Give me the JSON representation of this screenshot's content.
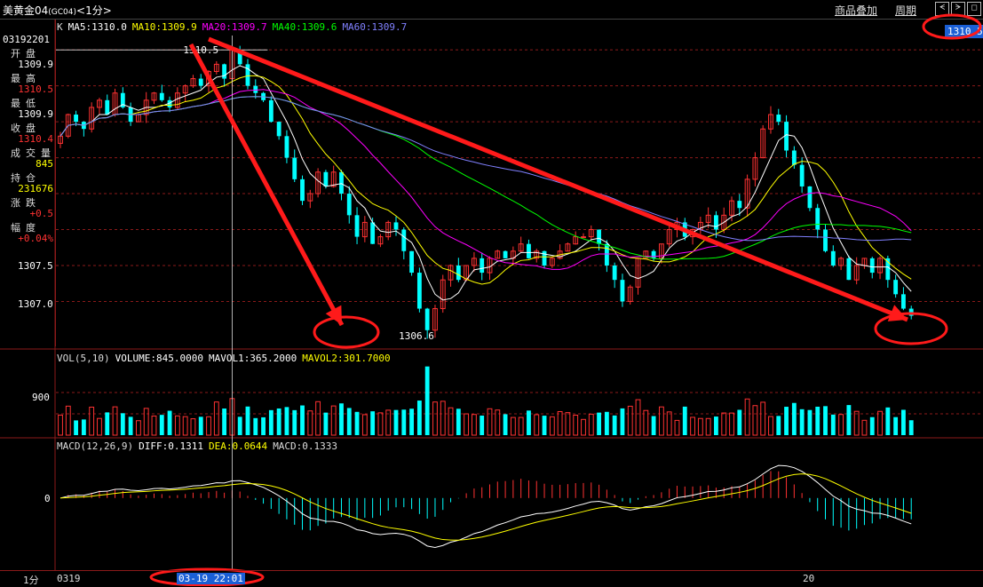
{
  "window": {
    "title": "美黄金04",
    "title_code": "(GC04)",
    "period": "<1分>",
    "links": [
      "商品叠加",
      "周期"
    ],
    "win_buttons": [
      "ᗕ",
      "ᗒ",
      "◻"
    ]
  },
  "info_panel": {
    "code": "03192201",
    "rows": [
      {
        "label": "开盘",
        "value": "1309.9",
        "color": "#ffffff"
      },
      {
        "label": "最高",
        "value": "1310.5",
        "color": "#ff3232"
      },
      {
        "label": "最低",
        "value": "1309.9",
        "color": "#ffffff"
      },
      {
        "label": "收盘",
        "value": "1310.4",
        "color": "#ff3232"
      },
      {
        "label": "成交量",
        "value": "845",
        "color": "#ffff00"
      },
      {
        "label": "持仓",
        "value": "231676",
        "color": "#ffff00"
      },
      {
        "label": "涨跌",
        "value": "+0.5",
        "color": "#ff3232"
      },
      {
        "label": "幅度",
        "value": "+0.04%",
        "color": "#ff3232"
      }
    ]
  },
  "price_tag": "1310.5",
  "annotations": {
    "high_label": "1310.5",
    "low_label": "1306.6"
  },
  "legend_main": [
    {
      "text": "K",
      "color": "#dddddd"
    },
    {
      "text": "MA5:1310.0",
      "color": "#ffffff"
    },
    {
      "text": "MA10:1309.9",
      "color": "#ffff00"
    },
    {
      "text": "MA20:1309.7",
      "color": "#ff00ff"
    },
    {
      "text": "MA40:1309.6",
      "color": "#00ff00"
    },
    {
      "text": "MA60:1309.7",
      "color": "#8080ff"
    }
  ],
  "legend_vol": [
    {
      "text": "VOL(5,10)",
      "color": "#dddddd"
    },
    {
      "text": "VOLUME:845.0000",
      "color": "#ffffff"
    },
    {
      "text": "MAVOL1:365.2000",
      "color": "#ffffff"
    },
    {
      "text": "MAVOL2:301.7000",
      "color": "#ffff00"
    }
  ],
  "legend_macd": [
    {
      "text": "MACD(12,26,9)",
      "color": "#dddddd"
    },
    {
      "text": "DIFF:0.1311",
      "color": "#ffffff"
    },
    {
      "text": "DEA:0.0644",
      "color": "#ffff00"
    },
    {
      "text": "MACD:0.1333",
      "color": "#dddddd"
    }
  ],
  "bottom": {
    "period_label": "1分",
    "x_start": "0319",
    "time_tag": "03-19 22:01",
    "x_mid": "20"
  },
  "chart_data": {
    "type": "candlestick",
    "price_axis": {
      "ticks": [
        "1307.5",
        "1307.0"
      ],
      "ylim": [
        1306.4,
        1310.7
      ]
    },
    "volume_axis": {
      "ticks": [
        "900"
      ],
      "ylim": [
        0,
        1500
      ]
    },
    "macd_axis": {
      "ticks": [
        "0"
      ],
      "ylim": [
        -0.9,
        0.6
      ]
    },
    "closes": [
      1309.3,
      1309.6,
      1309.5,
      1309.4,
      1309.7,
      1309.8,
      1309.6,
      1309.9,
      1309.7,
      1309.5,
      1309.6,
      1309.8,
      1309.9,
      1309.8,
      1309.7,
      1309.9,
      1310.0,
      1310.1,
      1310.0,
      1310.2,
      1310.3,
      1310.1,
      1310.5,
      1310.3,
      1310.0,
      1309.9,
      1309.8,
      1309.5,
      1309.3,
      1309.0,
      1308.7,
      1308.4,
      1308.5,
      1308.8,
      1308.6,
      1308.8,
      1308.5,
      1308.2,
      1307.9,
      1308.1,
      1307.8,
      1307.9,
      1308.1,
      1308.0,
      1307.7,
      1307.4,
      1306.9,
      1306.6,
      1306.9,
      1307.3,
      1307.5,
      1307.3,
      1307.5,
      1307.6,
      1307.4,
      1307.6,
      1307.7,
      1307.6,
      1307.7,
      1307.8,
      1307.6,
      1307.7,
      1307.5,
      1307.6,
      1307.7,
      1307.8,
      1307.9,
      1307.9,
      1308.0,
      1307.8,
      1307.5,
      1307.3,
      1307.0,
      1307.2,
      1307.6,
      1307.7,
      1307.6,
      1307.8,
      1308.0,
      1308.1,
      1307.9,
      1308.0,
      1308.1,
      1308.2,
      1308.0,
      1308.2,
      1308.4,
      1308.3,
      1308.7,
      1309.0,
      1309.4,
      1309.6,
      1309.5,
      1309.1,
      1308.9,
      1308.6,
      1308.3,
      1308.0,
      1307.7,
      1307.5,
      1307.6,
      1307.3,
      1307.5,
      1307.6,
      1307.4,
      1307.6,
      1307.3,
      1307.1,
      1306.9,
      1306.8
    ]
  }
}
